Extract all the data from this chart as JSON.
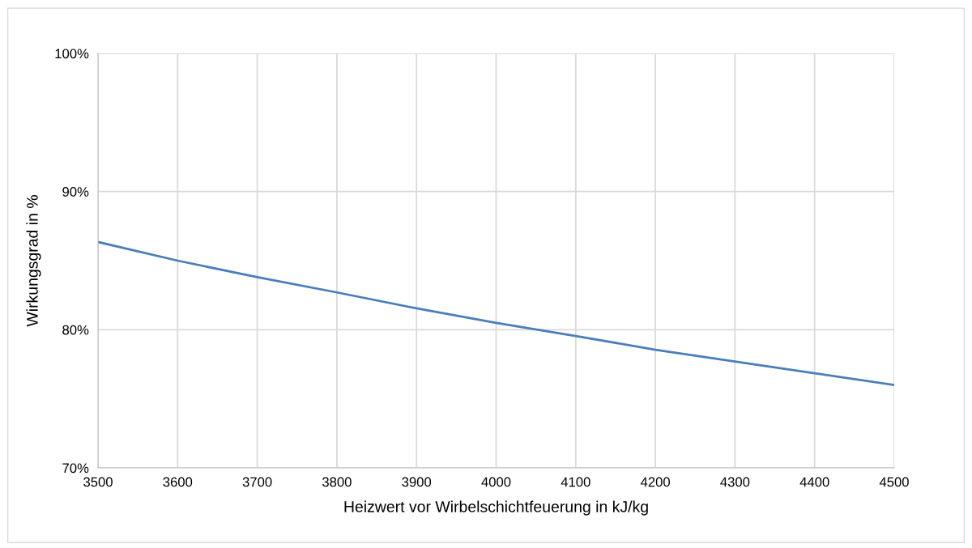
{
  "chart_data": {
    "type": "line",
    "xlabel": "Heizwert vor Wirbelschichtfeuerung in kJ/kg",
    "ylabel": "Wirkungsgrad in %",
    "x": [
      3500,
      3600,
      3700,
      3800,
      3900,
      4000,
      4100,
      4200,
      4300,
      4400,
      4500
    ],
    "series": [
      {
        "color": "#4a7ebb",
        "values": [
          86.35,
          85.0,
          83.8,
          82.7,
          81.55,
          80.5,
          79.55,
          78.55,
          77.7,
          76.85,
          76.0
        ]
      }
    ],
    "xlim": [
      3500,
      4500
    ],
    "xticks": [
      3500,
      3600,
      3700,
      3800,
      3900,
      4000,
      4100,
      4200,
      4300,
      4400,
      4500
    ],
    "ylim": [
      70,
      100
    ],
    "yticks": [
      {
        "value": 70,
        "label": "70%"
      },
      {
        "value": 80,
        "label": "80%"
      },
      {
        "value": 90,
        "label": "90%"
      },
      {
        "value": 100,
        "label": "100%"
      }
    ],
    "grid": true,
    "legend": false
  }
}
